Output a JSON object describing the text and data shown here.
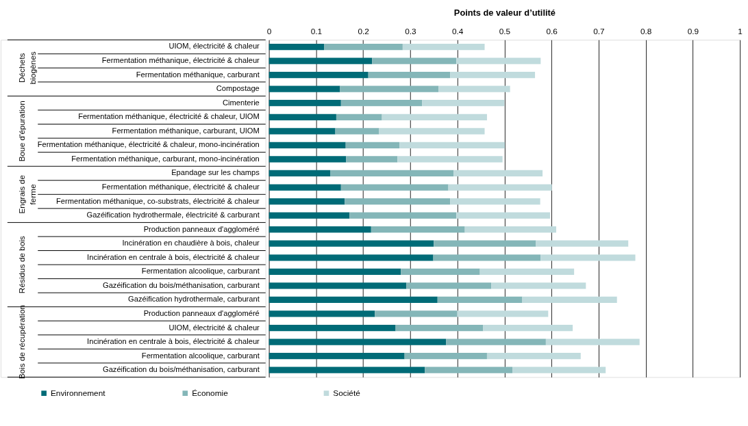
{
  "chart_data": {
    "type": "bar",
    "orientation": "horizontal",
    "stacked": true,
    "xlabel": "Points de valeur d’utilité",
    "categories": [
      "UIOM, électricité & chaleur",
      "Fermentation méthanique, électricité & chaleur",
      "Fermentation méthanique, carburant",
      "Compostage",
      "Cimenterie",
      "Fermentation méthanique, électricité & chaleur, UIOM",
      "Fermentation méthanique, carburant, UIOM",
      "Fermentation méthanique, électricité & chaleur, mono-incinération",
      "Fermentation méthanique, carburant, mono-incinération",
      "Epandage sur les champs",
      "Fermentation méthanique, électricité & chaleur",
      "Fermentation méthanique, co-substrats, électricité & chaleur",
      "Gazéification hydrothermale, électricité & carburant",
      "Production panneaux d'aggloméré",
      "Incinération en chaudière à bois, chaleur",
      "Incinération en centrale à bois, électricité & chaleur",
      "Fermentation alcoolique, carburant",
      "Gazéification du bois/méthanisation, carburant",
      "Gazéification hydrothermale, carburant",
      "Production panneaux d'aggloméré",
      "UIOM, électricité & chaleur",
      "Incinération en centrale à bois, électricité & chaleur",
      "Fermentation alcoolique, carburant",
      "Gazéification du bois/méthanisation, carburant"
    ],
    "series": [
      {
        "name": "Environnement",
        "color": "#006b77",
        "values": [
          0.117,
          0.219,
          0.211,
          0.151,
          0.153,
          0.143,
          0.141,
          0.163,
          0.164,
          0.13,
          0.153,
          0.161,
          0.171,
          0.217,
          0.35,
          0.349,
          0.28,
          0.292,
          0.358,
          0.225,
          0.269,
          0.376,
          0.288,
          0.331
        ]
      },
      {
        "name": "Économie",
        "color": "#84b6b8",
        "values": [
          0.167,
          0.179,
          0.174,
          0.209,
          0.172,
          0.097,
          0.093,
          0.114,
          0.109,
          0.262,
          0.228,
          0.224,
          0.227,
          0.199,
          0.217,
          0.228,
          0.168,
          0.18,
          0.18,
          0.175,
          0.186,
          0.212,
          0.175,
          0.186
        ]
      },
      {
        "name": "Société",
        "color": "#c0dbdd",
        "values": [
          0.174,
          0.179,
          0.18,
          0.152,
          0.175,
          0.223,
          0.224,
          0.224,
          0.223,
          0.189,
          0.22,
          0.191,
          0.199,
          0.194,
          0.196,
          0.201,
          0.2,
          0.201,
          0.201,
          0.193,
          0.19,
          0.199,
          0.199,
          0.198
        ]
      }
    ],
    "xlim": [
      0,
      1
    ],
    "xticks": [
      0,
      0.1,
      0.2,
      0.3,
      0.4,
      0.5,
      0.6,
      0.7,
      0.8,
      0.9,
      1
    ],
    "grid": "x",
    "legend": "bottom",
    "annotations": [
      "Déchets biogènes",
      "Boue d'épuration",
      "Engrais de ferme",
      "Résidus de bois",
      "Bois de récupération"
    ]
  }
}
